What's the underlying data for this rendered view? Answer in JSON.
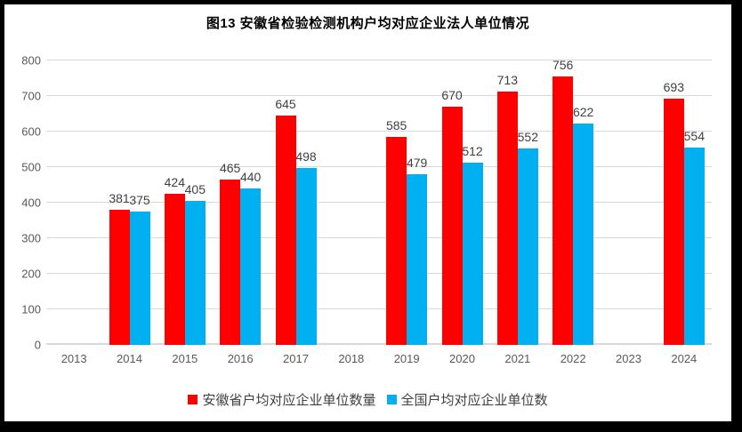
{
  "title": "图13  安徽省检验检测机构户均对应企业法人单位情况",
  "colors": {
    "series_anhui": "#FF0000",
    "series_national": "#00B0F0",
    "gridline": "#D9D9D9",
    "axis_text": "#595959",
    "data_label_text": "#404040",
    "title_text": "#000000",
    "frame_border": "#000000"
  },
  "chart_data": {
    "type": "bar",
    "title": "图13  安徽省检验检测机构户均对应企业法人单位情况",
    "categories": [
      "2013",
      "2014",
      "2015",
      "2016",
      "2017",
      "2018",
      "2019",
      "2020",
      "2021",
      "2022",
      "2023",
      "2024"
    ],
    "series": [
      {
        "name": "安徽省户均对应企业单位数量",
        "color": "#FF0000",
        "values": [
          null,
          381,
          424,
          465,
          645,
          null,
          585,
          670,
          713,
          756,
          null,
          693
        ]
      },
      {
        "name": "全国户均对应企业单位数",
        "color": "#00B0F0",
        "values": [
          null,
          375,
          405,
          440,
          498,
          null,
          479,
          512,
          552,
          622,
          null,
          554
        ]
      }
    ],
    "xlabel": "",
    "ylabel": "",
    "ylim": [
      0,
      800
    ],
    "ytick_step": 100,
    "grid": true,
    "data_labels": true,
    "legend_position": "bottom"
  }
}
